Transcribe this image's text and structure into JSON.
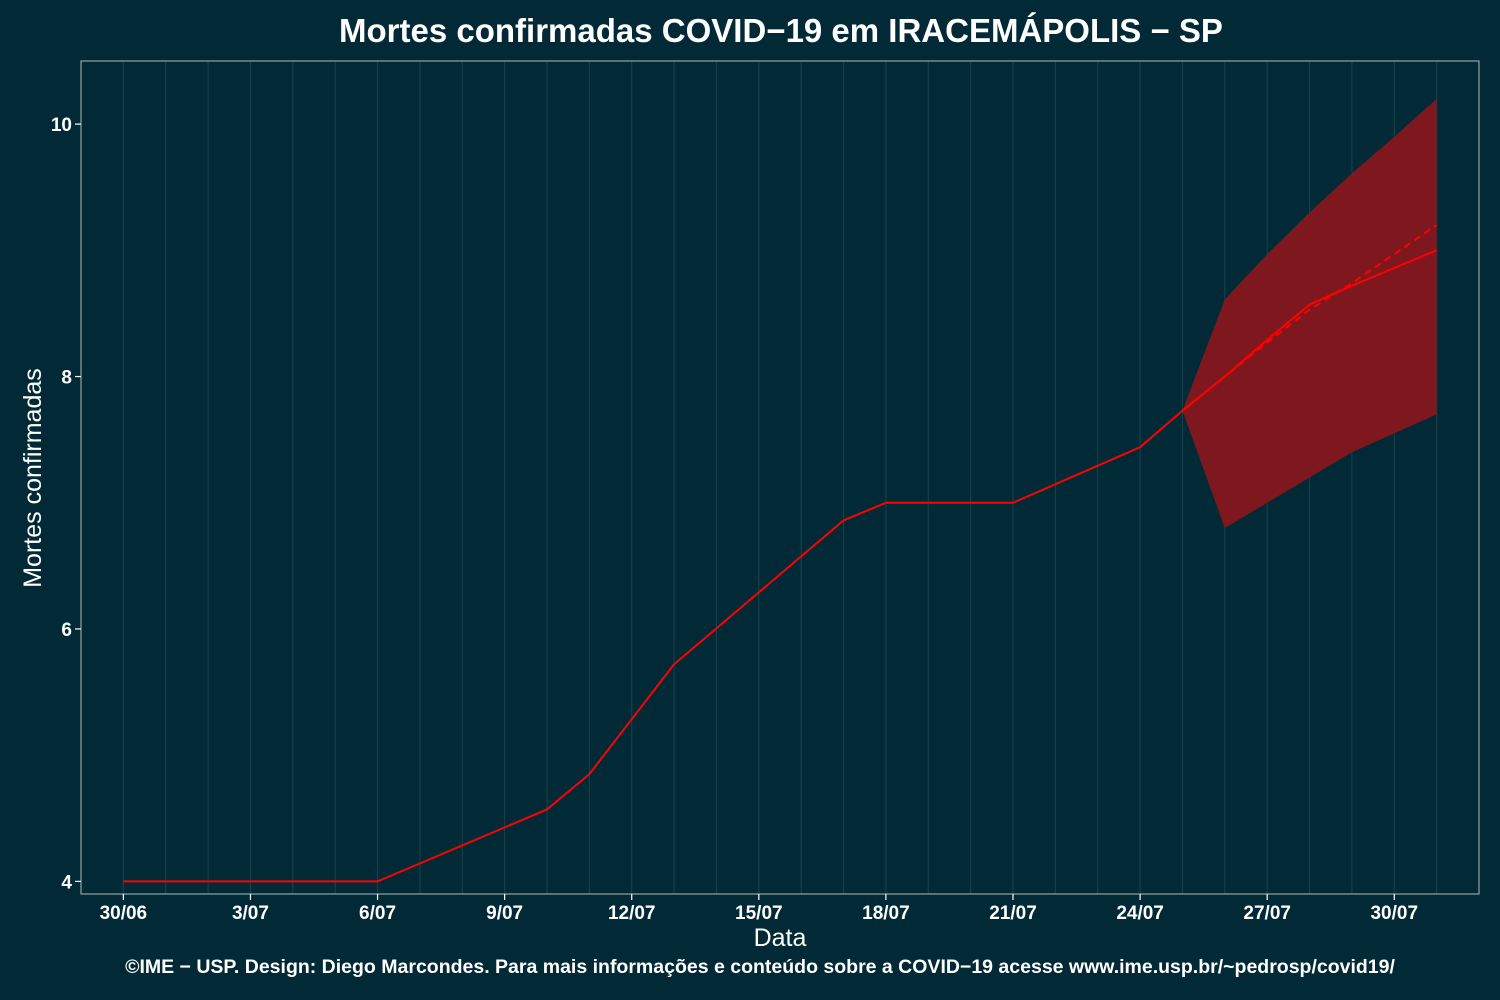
{
  "chart_data": {
    "type": "line",
    "title": "Mortes confirmadas COVID−19 em IRACEMÁPOLIS − SP",
    "xlabel": "Data",
    "ylabel": "Mortes confirmadas",
    "ylim": [
      3.9,
      10.5
    ],
    "xlim": [
      "2020-06-29",
      "2020-08-01"
    ],
    "x_ticks": [
      "30/06",
      "3/07",
      "6/07",
      "9/07",
      "12/07",
      "15/07",
      "18/07",
      "21/07",
      "24/07",
      "27/07",
      "30/07"
    ],
    "y_ticks": [
      4,
      6,
      8,
      10
    ],
    "grid": "vertical",
    "legend": "none",
    "series": [
      {
        "style": "solid",
        "color": "#ff0000",
        "x": [
          "2020-06-30",
          "2020-07-06",
          "2020-07-10",
          "2020-07-11",
          "2020-07-13",
          "2020-07-17",
          "2020-07-18",
          "2020-07-21",
          "2020-07-24",
          "2020-07-25",
          "2020-07-26",
          "2020-07-27",
          "2020-07-28",
          "2020-07-29",
          "2020-07-30",
          "2020-07-31"
        ],
        "values": [
          4.0,
          4.0,
          4.57,
          4.85,
          5.72,
          6.86,
          7.0,
          7.0,
          7.44,
          7.73,
          8.0,
          8.29,
          8.57,
          8.72,
          8.86,
          9.0
        ]
      },
      {
        "style": "dashed",
        "color": "#ff0000",
        "x": [
          "2020-07-25",
          "2020-07-26",
          "2020-07-27",
          "2020-07-28",
          "2020-07-29",
          "2020-07-30",
          "2020-07-31"
        ],
        "values": [
          7.73,
          8.0,
          8.27,
          8.53,
          8.74,
          8.97,
          9.2
        ]
      }
    ],
    "band": {
      "color": "#7f181e",
      "x": [
        "2020-07-25",
        "2020-07-26",
        "2020-07-27",
        "2020-07-28",
        "2020-07-29",
        "2020-07-30",
        "2020-07-31"
      ],
      "upper": [
        7.73,
        8.61,
        8.97,
        9.3,
        9.61,
        9.9,
        10.2
      ],
      "lower": [
        7.73,
        6.8,
        7.0,
        7.2,
        7.4,
        7.55,
        7.7
      ]
    }
  },
  "footer": "©IME − USP. Design: Diego Marcondes. Para mais informações e conteúdo sobre a COVID−19 acesse www.ime.usp.br/~pedrosp/covid19/",
  "colors": {
    "background": "#022a36",
    "panel_border": "#8fa3a8",
    "grid": "#17404a",
    "line": "#ff0000",
    "band": "#7f181e"
  }
}
